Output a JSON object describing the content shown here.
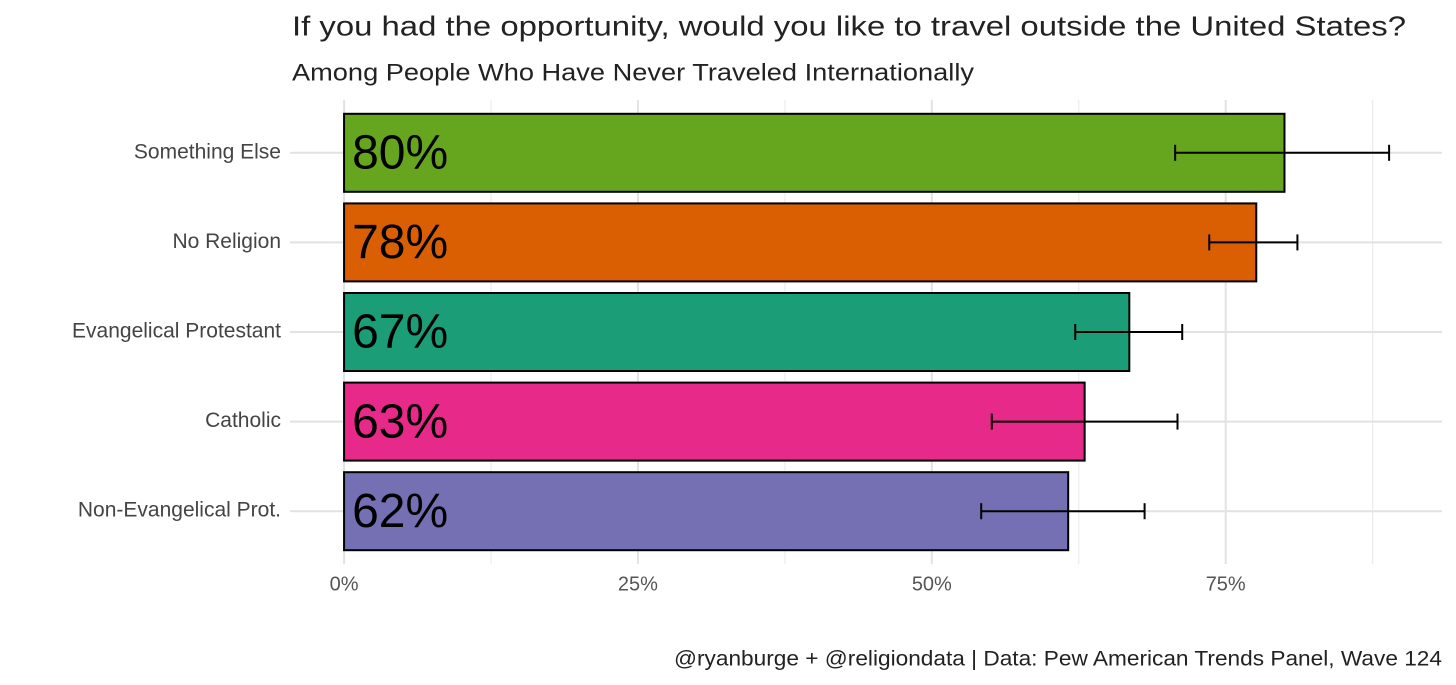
{
  "chart_data": {
    "type": "bar",
    "orientation": "horizontal",
    "title": "If you had the opportunity, would you like to travel outside the United States?",
    "subtitle": "Among People Who Have Never Traveled Internationally",
    "caption": "@ryanburge + @religiondata | Data: Pew American Trends Panel, Wave 124",
    "categories": [
      "Something Else",
      "No Religion",
      "Evangelical Protestant",
      "Catholic",
      "Non-Evangelical Prot."
    ],
    "values": [
      80,
      77.6,
      66.8,
      63,
      61.6
    ],
    "value_labels": [
      "80%",
      "78%",
      "67%",
      "63%",
      "62%"
    ],
    "error_low": [
      70.7,
      73.6,
      62.2,
      55.1,
      54.2
    ],
    "error_high": [
      88.9,
      81.1,
      71.3,
      70.9,
      68.1
    ],
    "colors": [
      "#66a61e",
      "#d95f02",
      "#1b9e77",
      "#e7298a",
      "#7570b3"
    ],
    "xlim": [
      -4.6,
      93.4
    ],
    "xticks": [
      {
        "value": 0,
        "label": "0%"
      },
      {
        "value": 25,
        "label": "25%"
      },
      {
        "value": 50,
        "label": "50%"
      },
      {
        "value": 75,
        "label": "75%"
      }
    ],
    "xticks_minor": [
      12.5,
      37.5,
      62.5,
      87.5
    ],
    "grid": true
  }
}
